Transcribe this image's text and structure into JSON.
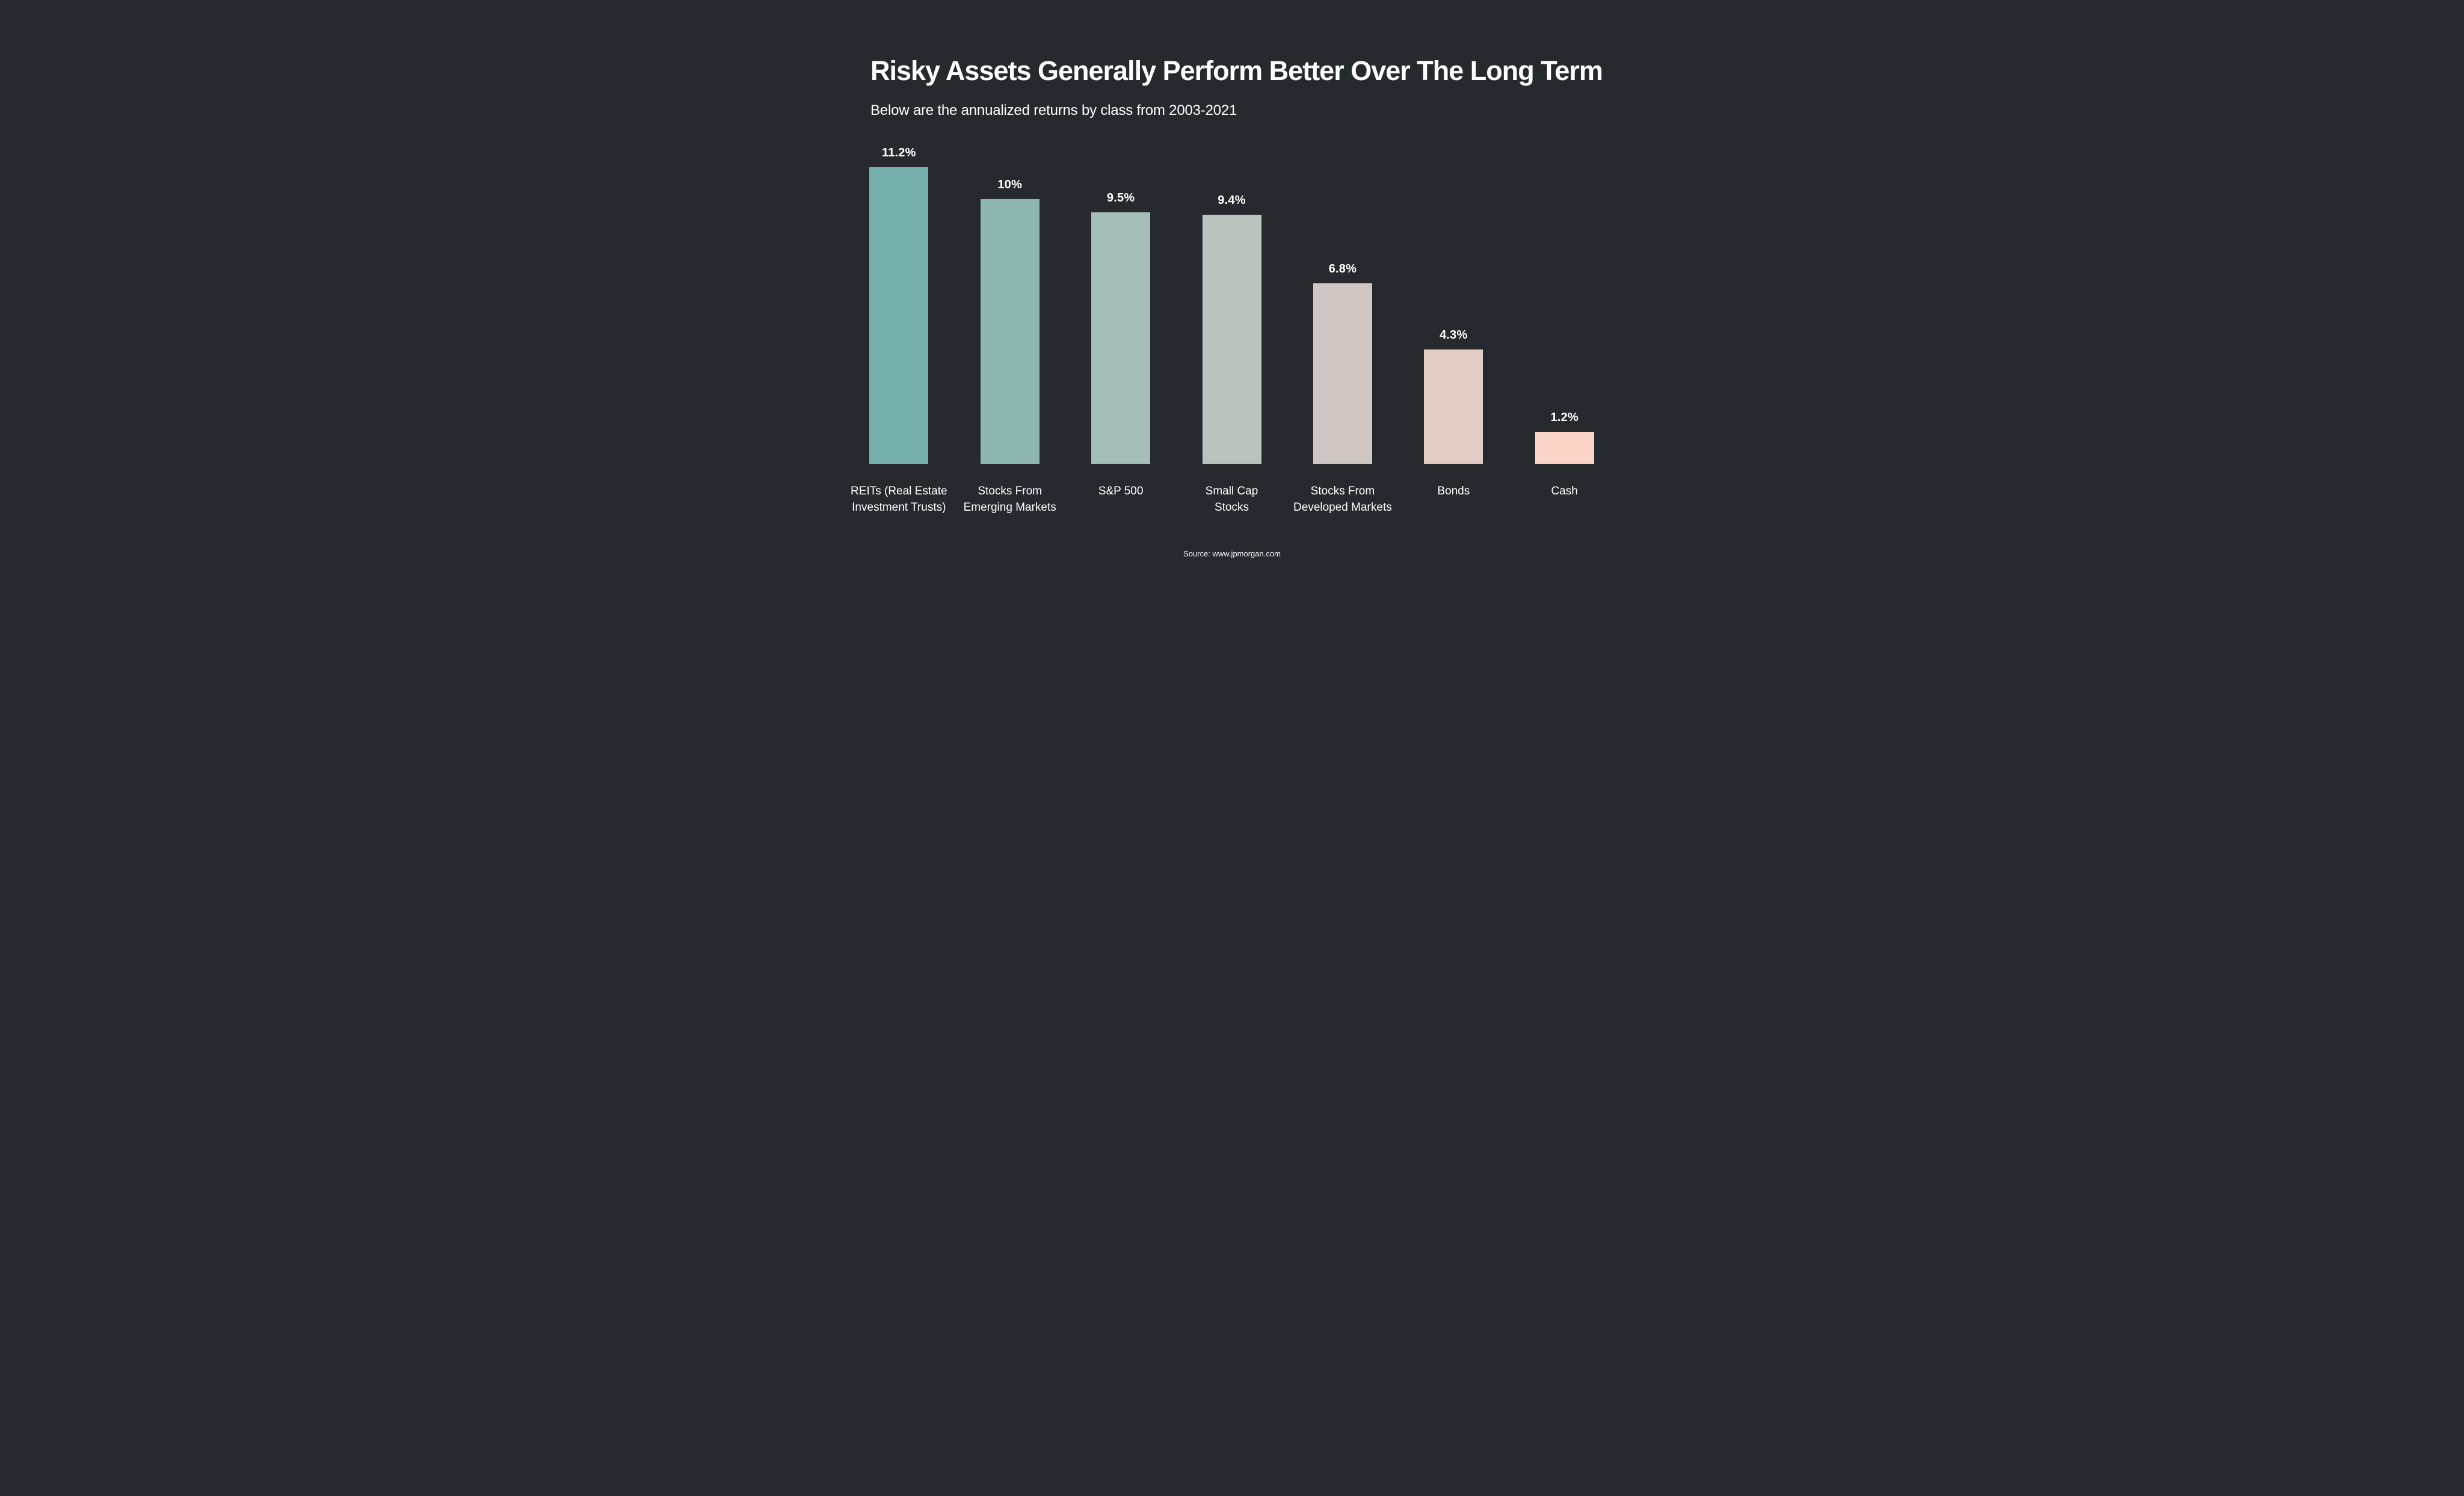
{
  "page": {
    "background_color": "#262a2f",
    "text_color": "#ffffff"
  },
  "header": {
    "title": "Risky Assets Generally Perform Better Over The Long Term",
    "subtitle": "Below are the annualized returns by class from 2003-2021"
  },
  "footer": {
    "source": "Source: www.jpmorgan.com"
  },
  "chart_data": {
    "type": "bar",
    "title": "Risky Assets Generally Perform Better Over The Long Term",
    "subtitle": "Below are the annualized returns by class from 2003-2021",
    "source": "Source: www.jpmorgan.com",
    "unit": "%",
    "categories": [
      "REITs (Real Estate\nInvestment Trusts)",
      "Stocks From\nEmerging Markets",
      "S&P 500",
      "Small Cap\nStocks",
      "Stocks From\nDeveloped Markets",
      "Bonds",
      "Cash"
    ],
    "values": [
      11.2,
      10,
      9.5,
      9.4,
      6.8,
      4.3,
      1.2
    ],
    "value_labels": [
      "11.2%",
      "10%",
      "9.5%",
      "9.4%",
      "6.8%",
      "4.3%",
      "1.2%"
    ],
    "bar_colors": [
      "#76b0ac",
      "#8fb7b2",
      "#a5beb9",
      "#bbc4bc",
      "#d0c7c2",
      "#e3ccc3",
      "#fbd4c8"
    ],
    "ylim": [
      0,
      12
    ],
    "grid": false,
    "axes_visible": false,
    "legend": null,
    "value_label_position": "above-bar"
  }
}
